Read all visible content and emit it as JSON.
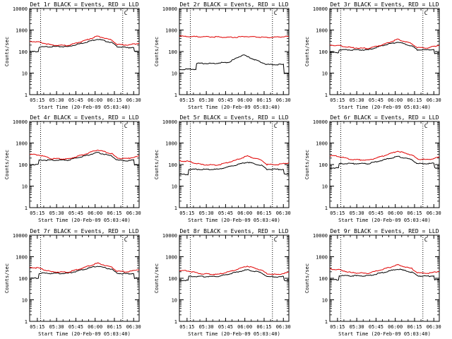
{
  "chart_data": [
    {
      "type": "line",
      "title": "Det 1r BLACK = Events, RED = LLD",
      "ylabel": "Counts/sec",
      "xlabel": "Start Time (20-Feb-09 05:03:40)",
      "xticks": [
        "05:15",
        "05:30",
        "05:45",
        "06:00",
        "06:15",
        "06:30"
      ],
      "yticks": [
        "1",
        "10",
        "100",
        "1000",
        "10000"
      ],
      "ylim": [
        1,
        10000
      ],
      "scale": "log",
      "annotation": "C",
      "series": [
        {
          "name": "BLACK = Events",
          "color": "#000000",
          "x": [
            0,
            0.08,
            0.081,
            0.2,
            0.35,
            0.5,
            0.62,
            0.75,
            0.8,
            0.9,
            0.95,
            0.951,
            1
          ],
          "y": [
            100,
            100,
            160,
            170,
            170,
            260,
            380,
            260,
            170,
            150,
            160,
            100,
            100
          ]
        },
        {
          "name": "RED = LLD",
          "color": "#e00000",
          "x": [
            0,
            0.08,
            0.2,
            0.35,
            0.5,
            0.62,
            0.75,
            0.8,
            0.9,
            1
          ],
          "y": [
            300,
            280,
            200,
            190,
            320,
            520,
            340,
            210,
            200,
            250
          ]
        }
      ]
    },
    {
      "type": "line",
      "title": "Det 2r BLACK = Events, RED = LLD",
      "ylabel": "Counts/sec",
      "xlabel": "Start Time (20-Feb-09 05:03:40)",
      "xticks": [
        "05:15",
        "05:30",
        "05:45",
        "06:00",
        "06:15",
        "06:30"
      ],
      "yticks": [
        "1",
        "10",
        "100",
        "1000",
        "10000"
      ],
      "ylim": [
        1,
        10000
      ],
      "scale": "log",
      "annotation": "C",
      "series": [
        {
          "name": "BLACK = Events",
          "color": "#000000",
          "x": [
            0,
            0.15,
            0.151,
            0.3,
            0.45,
            0.58,
            0.7,
            0.8,
            0.9,
            0.95,
            0.951,
            1
          ],
          "y": [
            15,
            15,
            28,
            28,
            32,
            70,
            40,
            25,
            25,
            25,
            10,
            10
          ]
        },
        {
          "name": "RED = LLD",
          "color": "#e00000",
          "x": [
            0,
            0.1,
            0.3,
            0.5,
            0.6,
            0.8,
            1
          ],
          "y": [
            520,
            500,
            480,
            460,
            500,
            450,
            500
          ]
        }
      ]
    },
    {
      "type": "line",
      "title": "Det 3r BLACK = Events, RED = LLD",
      "ylabel": "Counts/sec",
      "xlabel": "Start Time (20-Feb-09 05:03:40)",
      "xticks": [
        "05:15",
        "05:30",
        "05:45",
        "06:00",
        "06:15",
        "06:30"
      ],
      "yticks": [
        "1",
        "10",
        "100",
        "1000",
        "10000"
      ],
      "ylim": [
        1,
        10000
      ],
      "scale": "log",
      "annotation": "C",
      "series": [
        {
          "name": "BLACK = Events",
          "color": "#000000",
          "x": [
            0,
            0.08,
            0.081,
            0.2,
            0.35,
            0.5,
            0.62,
            0.75,
            0.8,
            0.9,
            0.95,
            0.951,
            1
          ],
          "y": [
            90,
            90,
            120,
            120,
            120,
            200,
            280,
            180,
            120,
            120,
            125,
            80,
            80
          ]
        },
        {
          "name": "RED = LLD",
          "color": "#e00000",
          "x": [
            0,
            0.08,
            0.2,
            0.35,
            0.5,
            0.62,
            0.75,
            0.8,
            0.9,
            1
          ],
          "y": [
            200,
            190,
            150,
            140,
            220,
            370,
            230,
            150,
            150,
            200
          ]
        }
      ]
    },
    {
      "type": "line",
      "title": "Det 4r BLACK = Events, RED = LLD",
      "ylabel": "Counts/sec",
      "xlabel": "Start Time (20-Feb-09 05:03:40)",
      "xticks": [
        "05:15",
        "05:30",
        "05:45",
        "06:00",
        "06:15",
        "06:30"
      ],
      "yticks": [
        "1",
        "10",
        "100",
        "1000",
        "10000"
      ],
      "ylim": [
        1,
        10000
      ],
      "scale": "log",
      "annotation": "C",
      "series": [
        {
          "name": "BLACK = Events",
          "color": "#000000",
          "x": [
            0,
            0.08,
            0.081,
            0.2,
            0.35,
            0.5,
            0.62,
            0.75,
            0.8,
            0.9,
            0.95,
            0.951,
            1
          ],
          "y": [
            100,
            100,
            160,
            160,
            160,
            250,
            360,
            250,
            160,
            150,
            160,
            100,
            100
          ]
        },
        {
          "name": "RED = LLD",
          "color": "#e00000",
          "x": [
            0,
            0.08,
            0.2,
            0.35,
            0.5,
            0.62,
            0.75,
            0.8,
            0.9,
            1
          ],
          "y": [
            300,
            280,
            190,
            180,
            300,
            480,
            320,
            200,
            190,
            250
          ]
        }
      ]
    },
    {
      "type": "line",
      "title": "Det 5r BLACK = Events, RED = LLD",
      "ylabel": "Counts/sec",
      "xlabel": "Start Time (20-Feb-09 05:03:40)",
      "xticks": [
        "05:15",
        "05:30",
        "05:45",
        "06:00",
        "06:15",
        "06:30"
      ],
      "yticks": [
        "1",
        "10",
        "100",
        "1000",
        "10000"
      ],
      "ylim": [
        1,
        10000
      ],
      "scale": "log",
      "annotation": "C",
      "series": [
        {
          "name": "BLACK = Events",
          "color": "#000000",
          "x": [
            0,
            0.08,
            0.081,
            0.2,
            0.35,
            0.5,
            0.62,
            0.75,
            0.8,
            0.9,
            0.95,
            0.951,
            1
          ],
          "y": [
            35,
            35,
            60,
            60,
            60,
            90,
            130,
            90,
            60,
            60,
            60,
            35,
            35
          ]
        },
        {
          "name": "RED = LLD",
          "color": "#e00000",
          "x": [
            0,
            0.08,
            0.2,
            0.35,
            0.5,
            0.62,
            0.75,
            0.8,
            0.9,
            1
          ],
          "y": [
            150,
            140,
            100,
            95,
            150,
            250,
            160,
            100,
            100,
            120
          ]
        }
      ]
    },
    {
      "type": "line",
      "title": "Det 6r BLACK = Events, RED = LLD",
      "ylabel": "Counts/sec",
      "xlabel": "Start Time (20-Feb-09 05:03:40)",
      "xticks": [
        "05:15",
        "05:30",
        "05:45",
        "06:00",
        "06:15",
        "06:30"
      ],
      "yticks": [
        "1",
        "10",
        "100",
        "1000",
        "10000"
      ],
      "ylim": [
        1,
        10000
      ],
      "scale": "log",
      "annotation": "C",
      "series": [
        {
          "name": "BLACK = Events",
          "color": "#000000",
          "x": [
            0,
            0.08,
            0.081,
            0.2,
            0.35,
            0.5,
            0.62,
            0.75,
            0.8,
            0.9,
            0.95,
            0.951,
            1
          ],
          "y": [
            70,
            70,
            110,
            110,
            110,
            170,
            240,
            170,
            110,
            110,
            115,
            70,
            70
          ]
        },
        {
          "name": "RED = LLD",
          "color": "#e00000",
          "x": [
            0,
            0.08,
            0.2,
            0.35,
            0.5,
            0.62,
            0.75,
            0.8,
            0.9,
            1
          ],
          "y": [
            260,
            240,
            170,
            160,
            260,
            420,
            280,
            180,
            170,
            220
          ]
        }
      ]
    },
    {
      "type": "line",
      "title": "Det 7r BLACK = Events, RED = LLD",
      "ylabel": "Counts/sec",
      "xlabel": "Start Time (20-Feb-09 05:03:40)",
      "xticks": [
        "05:15",
        "05:30",
        "05:45",
        "06:00",
        "06:15",
        "06:30"
      ],
      "yticks": [
        "1",
        "10",
        "100",
        "1000",
        "10000"
      ],
      "ylim": [
        1,
        10000
      ],
      "scale": "log",
      "annotation": "C",
      "series": [
        {
          "name": "BLACK = Events",
          "color": "#000000",
          "x": [
            0,
            0.08,
            0.081,
            0.2,
            0.35,
            0.5,
            0.62,
            0.75,
            0.8,
            0.9,
            0.95,
            0.951,
            1
          ],
          "y": [
            100,
            100,
            170,
            170,
            170,
            260,
            370,
            260,
            170,
            160,
            170,
            100,
            100
          ]
        },
        {
          "name": "RED = LLD",
          "color": "#e00000",
          "x": [
            0,
            0.08,
            0.2,
            0.35,
            0.5,
            0.62,
            0.75,
            0.8,
            0.9,
            1
          ],
          "y": [
            320,
            300,
            200,
            190,
            320,
            500,
            330,
            210,
            200,
            260
          ]
        }
      ]
    },
    {
      "type": "line",
      "title": "Det 8r BLACK = Events, RED = LLD",
      "ylabel": "Counts/sec",
      "xlabel": "Start Time (20-Feb-09 05:03:40)",
      "xticks": [
        "05:15",
        "05:30",
        "05:45",
        "06:00",
        "06:15",
        "06:30"
      ],
      "yticks": [
        "1",
        "10",
        "100",
        "1000",
        "10000"
      ],
      "ylim": [
        1,
        10000
      ],
      "scale": "log",
      "annotation": "C",
      "series": [
        {
          "name": "BLACK = Events",
          "color": "#000000",
          "x": [
            0,
            0.08,
            0.081,
            0.2,
            0.35,
            0.5,
            0.62,
            0.75,
            0.8,
            0.9,
            0.95,
            0.951,
            1
          ],
          "y": [
            80,
            80,
            120,
            120,
            120,
            180,
            250,
            180,
            120,
            115,
            120,
            80,
            80
          ]
        },
        {
          "name": "RED = LLD",
          "color": "#e00000",
          "x": [
            0,
            0.08,
            0.2,
            0.35,
            0.5,
            0.62,
            0.75,
            0.8,
            0.9,
            1
          ],
          "y": [
            230,
            220,
            160,
            150,
            230,
            370,
            240,
            160,
            150,
            190
          ]
        }
      ]
    },
    {
      "type": "line",
      "title": "Det 9r BLACK = Events, RED = LLD",
      "ylabel": "Counts/sec",
      "xlabel": "Start Time (20-Feb-09 05:03:40)",
      "xticks": [
        "05:15",
        "05:30",
        "05:45",
        "06:00",
        "06:15",
        "06:30"
      ],
      "yticks": [
        "1",
        "10",
        "100",
        "1000",
        "10000"
      ],
      "ylim": [
        1,
        10000
      ],
      "scale": "log",
      "annotation": "C",
      "series": [
        {
          "name": "BLACK = Events",
          "color": "#000000",
          "x": [
            0,
            0.08,
            0.081,
            0.2,
            0.35,
            0.5,
            0.62,
            0.75,
            0.8,
            0.9,
            0.95,
            0.951,
            1
          ],
          "y": [
            85,
            85,
            130,
            130,
            130,
            190,
            270,
            190,
            130,
            125,
            130,
            85,
            85
          ]
        },
        {
          "name": "RED = LLD",
          "color": "#e00000",
          "x": [
            0,
            0.08,
            0.2,
            0.35,
            0.5,
            0.62,
            0.75,
            0.8,
            0.9,
            1
          ],
          "y": [
            270,
            250,
            180,
            170,
            270,
            420,
            280,
            180,
            170,
            210
          ]
        }
      ]
    }
  ]
}
